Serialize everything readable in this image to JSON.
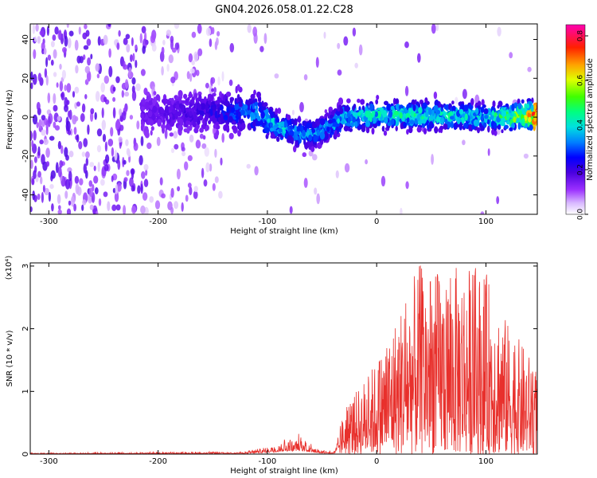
{
  "title": "GN04.2026.058.01.22.C28",
  "chart_data": [
    {
      "type": "heatmap",
      "xlabel": "Height of straight line (km)",
      "ylabel": "Frequency (Hz)",
      "xlim": [
        -317,
        147
      ],
      "ylim": [
        -50,
        48
      ],
      "xticks": [
        -300,
        -200,
        -100,
        0,
        100
      ],
      "yticks": [
        -40,
        -20,
        0,
        20,
        40
      ],
      "colorbar": {
        "label": "Normalized spectral amplitude",
        "range": [
          0.0,
          0.85
        ],
        "ticks": [
          0.0,
          0.2,
          0.4,
          0.6,
          0.8
        ],
        "colormap": [
          "#ffffff",
          "#9b30ff",
          "#5a00e0",
          "#0000ff",
          "#00bfff",
          "#00ffbf",
          "#00ff00",
          "#ffff00",
          "#ff8c00",
          "#ff0000",
          "#ff00c0"
        ]
      },
      "ridge": {
        "x": [
          -210,
          -150,
          -110,
          -90,
          -75,
          -60,
          -45,
          -30,
          0,
          50,
          100,
          147
        ],
        "frequency": [
          2,
          3,
          2,
          -5,
          -8,
          -9,
          -5,
          0,
          1,
          1,
          0,
          1
        ],
        "peak_amplitude": [
          0.2,
          0.3,
          0.45,
          0.5,
          0.45,
          0.45,
          0.45,
          0.5,
          0.55,
          0.55,
          0.5,
          0.85
        ]
      }
    },
    {
      "type": "line",
      "xlabel": "Height of straight line (km)",
      "ylabel": "SNR (10 * v/v)",
      "y_multiplier": "(x10⁴)",
      "xlim": [
        -317,
        147
      ],
      "ylim": [
        0,
        3.05
      ],
      "xticks": [
        -300,
        -200,
        -100,
        0,
        100
      ],
      "yticks": [
        0,
        1,
        2,
        3
      ],
      "color": "#e8302c",
      "envelope": {
        "x": [
          -317,
          -200,
          -120,
          -100,
          -85,
          -70,
          -50,
          -38,
          -30,
          0,
          20,
          40,
          60,
          80,
          100,
          120,
          147
        ],
        "max": [
          0.02,
          0.04,
          0.05,
          0.15,
          0.28,
          0.35,
          0.08,
          0.06,
          0.7,
          1.5,
          2.3,
          3.05,
          2.9,
          3.05,
          2.9,
          2.1,
          1.4
        ]
      }
    }
  ]
}
